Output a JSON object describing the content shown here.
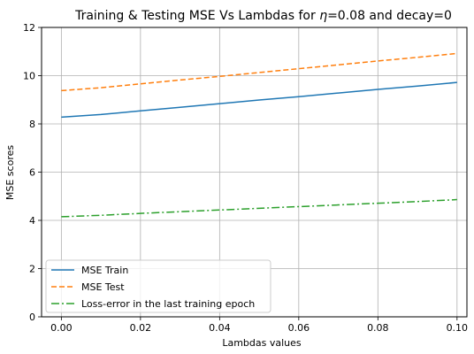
{
  "chart_data": {
    "type": "line",
    "title_prefix": "Training & Testing MSE Vs Lambdas for ",
    "title_eta": "η",
    "title_suffix": "=0.08 and decay=0",
    "xlabel": "Lambdas values",
    "ylabel": "MSE scores",
    "xlim": [
      -0.005,
      0.1025
    ],
    "ylim": [
      0,
      12
    ],
    "xticks": [
      0.0,
      0.02,
      0.04,
      0.06,
      0.08,
      0.1
    ],
    "xtick_labels": [
      "0.00",
      "0.02",
      "0.04",
      "0.06",
      "0.08",
      "0.10"
    ],
    "yticks": [
      0,
      2,
      4,
      6,
      8,
      10,
      12
    ],
    "ytick_labels": [
      "0",
      "2",
      "4",
      "6",
      "8",
      "10",
      "12"
    ],
    "grid": true,
    "legend_position": "lower-left",
    "x": [
      0.0,
      0.01,
      0.02,
      0.03,
      0.04,
      0.05,
      0.06,
      0.07,
      0.08,
      0.09,
      0.1
    ],
    "series": [
      {
        "name": "MSE Train",
        "color": "#1f77b4",
        "dash": "solid",
        "values": [
          8.28,
          8.39,
          8.54,
          8.69,
          8.84,
          8.99,
          9.13,
          9.28,
          9.43,
          9.57,
          9.72
        ]
      },
      {
        "name": "MSE Test",
        "color": "#ff7f0e",
        "dash": "dashed",
        "values": [
          9.38,
          9.5,
          9.66,
          9.82,
          9.97,
          10.13,
          10.29,
          10.45,
          10.61,
          10.76,
          10.92
        ]
      },
      {
        "name": "Loss-error in the last training epoch",
        "color": "#2ca02c",
        "dash": "dashdot",
        "values": [
          4.15,
          4.21,
          4.29,
          4.36,
          4.43,
          4.5,
          4.57,
          4.64,
          4.71,
          4.78,
          4.86
        ]
      }
    ]
  }
}
